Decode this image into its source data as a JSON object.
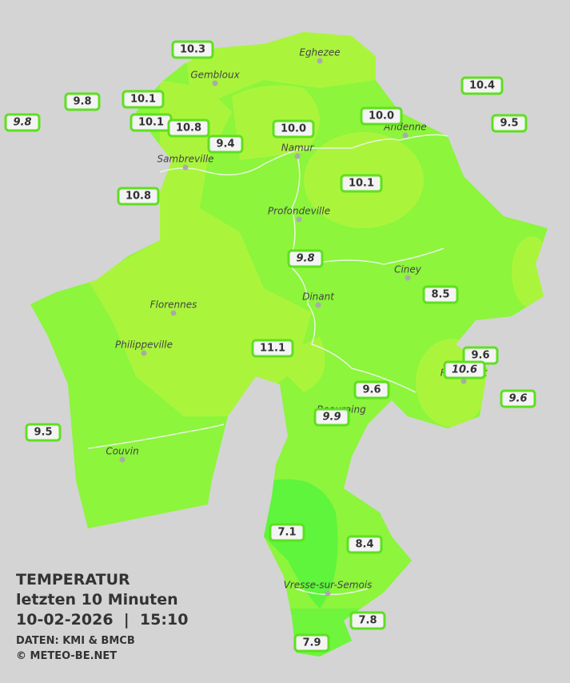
{
  "title": {
    "heading": "TEMPERATUR",
    "period": "letzten 10 Minuten",
    "timestamp": "10-02-2026  |  15:10",
    "source": "DATEN: KMI & BMCB",
    "copyright": "© METEO-BE.NET"
  },
  "cities": [
    "Eghezee",
    "Gembloux",
    "Andenne",
    "Namur",
    "Sambreville",
    "Profondeville",
    "Ciney",
    "Dinant",
    "Florennes",
    "Philippeville",
    "Rochefort",
    "Beauraing",
    "Couvin",
    "Vresse-sur-Semois"
  ],
  "stations": [
    "10.3",
    "9.8",
    "10.1",
    "9.8",
    "10.1",
    "10.8",
    "9.4",
    "10.0",
    "10.0",
    "10.4",
    "9.5",
    "10.1",
    "10.8",
    "9.8",
    "8.5",
    "11.1",
    "9.6",
    "10.6",
    "9.6",
    "9.6",
    "9.9",
    "9.5",
    "7.1",
    "8.4",
    "7.8",
    "7.9"
  ]
}
